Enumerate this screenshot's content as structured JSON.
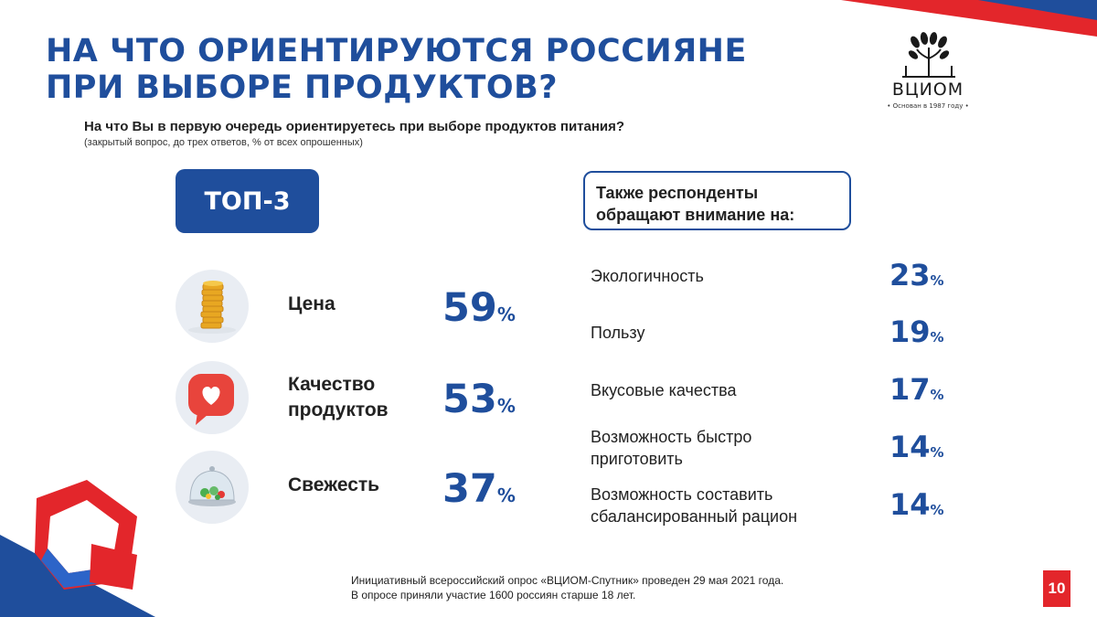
{
  "header": {
    "title_line1": "НА ЧТО ОРИЕНТИРУЮТСЯ РОССИЯНЕ",
    "title_line2": "ПРИ ВЫБОРЕ ПРОДУКТОВ?"
  },
  "logo": {
    "name": "ВЦИОМ",
    "founded": "• Основан в 1987 году •",
    "icon": "tree-logo-icon"
  },
  "question": {
    "text": "На что Вы в первую очередь ориентируетесь при выборе продуктов питания?",
    "note": "(закрытый вопрос, до трех ответов, % от всех опрошенных)"
  },
  "top3": {
    "badge": "ТОП-3",
    "items": [
      {
        "line1": "Цена",
        "line2": "",
        "value": "59",
        "unit": "%",
        "icon": "coins-icon"
      },
      {
        "line1": "Качество",
        "line2": "продуктов",
        "value": "53",
        "unit": "%",
        "icon": "heart-like-icon"
      },
      {
        "line1": "Свежесть",
        "line2": "",
        "value": "37",
        "unit": "%",
        "icon": "salad-dome-icon"
      }
    ]
  },
  "also": {
    "heading_line1": "Также респонденты",
    "heading_line2": "обращают внимание на:",
    "items": [
      {
        "line1": "Экологичность",
        "line2": "",
        "value": "23",
        "unit": "%"
      },
      {
        "line1": "Пользу",
        "line2": "",
        "value": "19",
        "unit": "%"
      },
      {
        "line1": "Вкусовые качества",
        "line2": "",
        "value": "17",
        "unit": "%"
      },
      {
        "line1": "Возможность быстро",
        "line2": "приготовить",
        "value": "14",
        "unit": "%"
      },
      {
        "line1": "Возможность составить",
        "line2": "сбалансированный рацион",
        "value": "14",
        "unit": "%"
      }
    ]
  },
  "footer": {
    "line1": "Инициативный всероссийский опрос «ВЦИОМ-Спутник» проведен 29 мая 2021 года.",
    "line2": "В опросе приняли участие 1600 россиян старше 18 лет."
  },
  "page_number": "10",
  "colors": {
    "brand_blue": "#1f4e9c",
    "brand_red": "#e3262b"
  }
}
